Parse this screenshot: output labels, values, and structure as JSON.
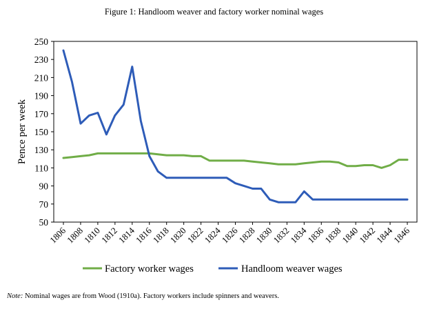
{
  "figure": {
    "title": "Figure 1: Handloom weaver and factory worker nominal wages",
    "note_label": "Note:",
    "note_text": " Nominal wages are from Wood (1910a). Factory workers include spinners and weavers."
  },
  "chart_data": {
    "type": "line",
    "title": "",
    "xlabel": "",
    "ylabel": "Pence per week",
    "ylim": [
      50,
      250
    ],
    "yticks": [
      50,
      70,
      90,
      110,
      130,
      150,
      170,
      190,
      210,
      230,
      250
    ],
    "xlim": [
      1806,
      1846
    ],
    "xticks": [
      1806,
      1808,
      1810,
      1812,
      1814,
      1816,
      1818,
      1820,
      1822,
      1824,
      1826,
      1828,
      1830,
      1832,
      1834,
      1836,
      1838,
      1840,
      1842,
      1844,
      1846
    ],
    "grid": false,
    "legend": "bottom",
    "x": [
      1806,
      1807,
      1808,
      1809,
      1810,
      1811,
      1812,
      1813,
      1814,
      1815,
      1816,
      1817,
      1818,
      1819,
      1820,
      1821,
      1822,
      1823,
      1824,
      1825,
      1826,
      1827,
      1828,
      1829,
      1830,
      1831,
      1832,
      1833,
      1834,
      1835,
      1836,
      1837,
      1838,
      1839,
      1840,
      1841,
      1842,
      1843,
      1844,
      1845,
      1846
    ],
    "series": [
      {
        "name": "Factory worker wages",
        "color": "#70ad47",
        "values": [
          121,
          122,
          123,
          124,
          126,
          126,
          126,
          126,
          126,
          126,
          126,
          125,
          124,
          124,
          124,
          123,
          123,
          118,
          118,
          118,
          118,
          118,
          117,
          116,
          115,
          114,
          114,
          114,
          115,
          116,
          117,
          117,
          116,
          112,
          112,
          113,
          113,
          110,
          113,
          119,
          119
        ]
      },
      {
        "name": "Handloom weaver wages",
        "color": "#2e5cb8",
        "values": [
          240,
          205,
          159,
          168,
          171,
          147,
          168,
          180,
          222,
          162,
          123,
          106,
          99,
          99,
          99,
          99,
          99,
          99,
          99,
          99,
          93,
          90,
          87,
          87,
          75,
          72,
          72,
          72,
          84,
          75,
          75,
          75,
          75,
          75,
          75,
          75,
          75,
          75,
          75,
          75,
          75
        ]
      }
    ]
  }
}
